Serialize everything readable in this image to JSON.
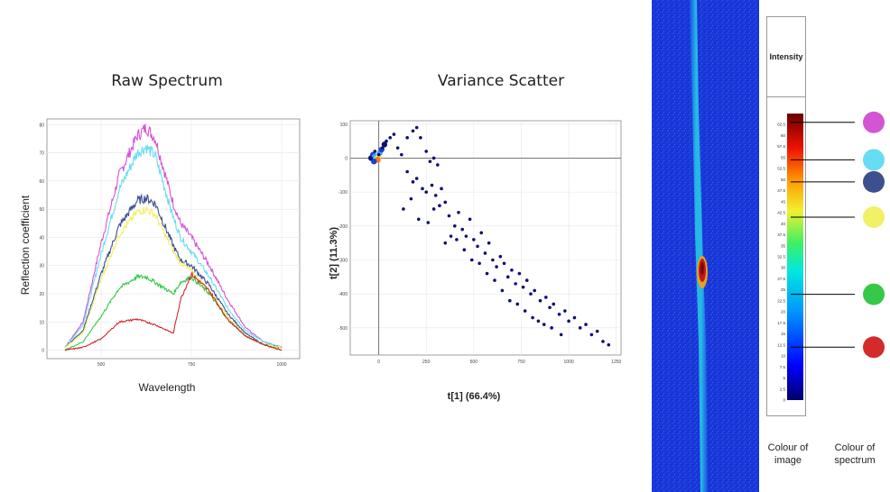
{
  "raw_spectrum": {
    "title": "Raw Spectrum",
    "xlabel": "Wavelength",
    "ylabel": "Reflection coefficient"
  },
  "variance_scatter": {
    "title": "Variance Scatter",
    "xlabel": "t[1] (66.4%)",
    "ylabel": "t[2] (11.3%)"
  },
  "intensity_legend": {
    "header": "Intensity",
    "colour_of_image": "Colour of image",
    "colour_of_spectrum": "Colour of spectrum"
  },
  "chart_data": [
    {
      "type": "line",
      "title": "Raw Spectrum",
      "xlabel": "Wavelength",
      "ylabel": "Reflection coefficient",
      "xlim": [
        350,
        1050
      ],
      "ylim": [
        -3,
        82
      ],
      "xticks": [
        500,
        750,
        1000
      ],
      "yticks": [
        0,
        10,
        20,
        30,
        40,
        50,
        60,
        70,
        80
      ],
      "grid": true,
      "x": [
        400,
        450,
        500,
        550,
        600,
        625,
        650,
        700,
        720,
        750,
        800,
        850,
        900,
        950,
        1000
      ],
      "series": [
        {
          "color": "#d455d4",
          "values": [
            1,
            10,
            38,
            62,
            76,
            79,
            75,
            52,
            45,
            40,
            30,
            18,
            8,
            3,
            1
          ]
        },
        {
          "color": "#66ddf2",
          "values": [
            1,
            9,
            34,
            57,
            70,
            72,
            69,
            47,
            40,
            35,
            26,
            15,
            7,
            3,
            1
          ]
        },
        {
          "color": "#3d4f8e",
          "values": [
            1,
            7,
            27,
            44,
            53,
            54,
            52,
            37,
            32,
            30,
            23,
            13,
            6,
            2,
            1
          ]
        },
        {
          "color": "#f2f066",
          "values": [
            1,
            6,
            25,
            41,
            49,
            50,
            48,
            35,
            31,
            28,
            21,
            12,
            5,
            2,
            1
          ]
        },
        {
          "color": "#37c84a",
          "values": [
            0,
            3,
            12,
            22,
            26,
            26,
            24,
            20,
            24,
            26,
            20,
            11,
            5,
            2,
            0
          ]
        },
        {
          "color": "#d42a2a",
          "values": [
            0,
            1,
            4,
            10,
            11,
            10,
            9,
            6,
            18,
            27,
            21,
            11,
            5,
            2,
            0
          ]
        }
      ]
    },
    {
      "type": "scatter",
      "title": "Variance Scatter",
      "xlabel": "t[1] (66.4%)",
      "ylabel": "t[2] (11.3%)",
      "xlim": [
        -150,
        1275
      ],
      "ylim": [
        -580,
        110
      ],
      "xticks": [
        0,
        250,
        500,
        750,
        1000,
        1250
      ],
      "yticks": [
        100,
        0,
        -100,
        -200,
        -300,
        -400,
        -500
      ],
      "grid": true,
      "reference_lines": {
        "x": 0,
        "y": 0
      },
      "point_color": "#0d1173",
      "points": [
        [
          -40,
          0
        ],
        [
          -20,
          20
        ],
        [
          0,
          10
        ],
        [
          20,
          30
        ],
        [
          40,
          50
        ],
        [
          60,
          60
        ],
        [
          80,
          70
        ],
        [
          100,
          30
        ],
        [
          120,
          10
        ],
        [
          150,
          60
        ],
        [
          180,
          80
        ],
        [
          200,
          90
        ],
        [
          220,
          60
        ],
        [
          250,
          20
        ],
        [
          270,
          -10
        ],
        [
          290,
          0
        ],
        [
          310,
          -20
        ],
        [
          150,
          -40
        ],
        [
          180,
          -70
        ],
        [
          200,
          -60
        ],
        [
          230,
          -90
        ],
        [
          250,
          -100
        ],
        [
          280,
          -80
        ],
        [
          300,
          -110
        ],
        [
          320,
          -140
        ],
        [
          330,
          -90
        ],
        [
          350,
          -130
        ],
        [
          370,
          -170
        ],
        [
          400,
          -200
        ],
        [
          420,
          -160
        ],
        [
          440,
          -210
        ],
        [
          460,
          -230
        ],
        [
          480,
          -180
        ],
        [
          500,
          -240
        ],
        [
          520,
          -260
        ],
        [
          540,
          -220
        ],
        [
          560,
          -280
        ],
        [
          580,
          -250
        ],
        [
          600,
          -300
        ],
        [
          620,
          -320
        ],
        [
          640,
          -290
        ],
        [
          660,
          -310
        ],
        [
          680,
          -350
        ],
        [
          700,
          -330
        ],
        [
          720,
          -370
        ],
        [
          740,
          -340
        ],
        [
          760,
          -380
        ],
        [
          780,
          -360
        ],
        [
          800,
          -400
        ],
        [
          820,
          -390
        ],
        [
          850,
          -420
        ],
        [
          880,
          -410
        ],
        [
          900,
          -440
        ],
        [
          920,
          -430
        ],
        [
          950,
          -460
        ],
        [
          980,
          -450
        ],
        [
          1000,
          -480
        ],
        [
          1030,
          -470
        ],
        [
          1060,
          -500
        ],
        [
          1090,
          -490
        ],
        [
          1120,
          -520
        ],
        [
          1150,
          -510
        ],
        [
          1180,
          -540
        ],
        [
          1210,
          -550
        ],
        [
          130,
          -150
        ],
        [
          170,
          -120
        ],
        [
          210,
          -180
        ],
        [
          260,
          -190
        ],
        [
          290,
          -150
        ],
        [
          350,
          -250
        ],
        [
          380,
          -230
        ],
        [
          410,
          -240
        ],
        [
          450,
          -270
        ],
        [
          490,
          -300
        ],
        [
          530,
          -310
        ],
        [
          570,
          -340
        ],
        [
          610,
          -360
        ],
        [
          650,
          -390
        ],
        [
          690,
          -420
        ],
        [
          730,
          -430
        ],
        [
          770,
          -450
        ],
        [
          810,
          -470
        ],
        [
          840,
          -480
        ],
        [
          870,
          -490
        ],
        [
          910,
          -500
        ],
        [
          960,
          -520
        ]
      ]
    },
    {
      "type": "heatmap",
      "title": "Intensity",
      "colorbar_ticks": [
        0,
        2.5,
        5,
        7.5,
        10,
        12.5,
        15,
        17.5,
        20,
        22.5,
        25,
        27.5,
        30,
        32.5,
        35,
        37.5,
        40,
        42.5,
        45,
        47.5,
        50,
        52.5,
        55,
        57.5,
        60,
        62.5
      ],
      "colorbar_range": [
        0,
        65
      ],
      "markers": [
        {
          "value": 63,
          "spectrum_color": "#d455d4"
        },
        {
          "value": 54.5,
          "spectrum_color": "#66ddf2"
        },
        {
          "value": 49.5,
          "spectrum_color": "#3d4f8e"
        },
        {
          "value": 41.5,
          "spectrum_color": "#f2f066"
        },
        {
          "value": 24,
          "spectrum_color": "#37c84a"
        },
        {
          "value": 12,
          "spectrum_color": "#d42a2a"
        }
      ]
    }
  ]
}
